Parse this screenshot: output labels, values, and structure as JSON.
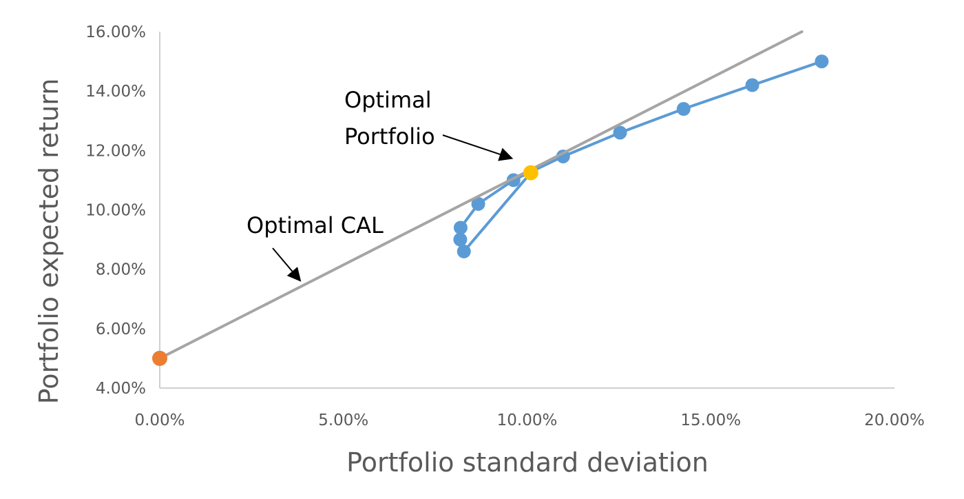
{
  "chart_data": {
    "type": "scatter",
    "xlabel": "Portfolio standard deviation",
    "ylabel": "Portfolio expected return",
    "xlim": [
      0,
      0.2
    ],
    "ylim": [
      0.04,
      0.16
    ],
    "x_ticks": [
      0,
      0.05,
      0.1,
      0.15,
      0.2
    ],
    "x_tick_labels": [
      "0.00%",
      "5.00%",
      "10.00%",
      "15.00%",
      "20.00%"
    ],
    "y_ticks": [
      0.04,
      0.06,
      0.08,
      0.1,
      0.12,
      0.14,
      0.16
    ],
    "y_tick_labels": [
      "4.00%",
      "6.00%",
      "8.00%",
      "10.00%",
      "12.00%",
      "14.00%",
      "16.00%"
    ],
    "grid": false,
    "series": [
      {
        "kind": "line-markers",
        "color": "#5b9bd5",
        "x": [
          0.0828,
          0.0818,
          0.0819,
          0.0867,
          0.0963,
          0.1098,
          0.1253,
          0.1426,
          0.1613,
          0.1802
        ],
        "y": [
          0.086,
          0.09,
          0.094,
          0.102,
          0.11,
          0.118,
          0.126,
          0.134,
          0.142,
          0.15
        ],
        "close_to": [
          0.101,
          0.1125
        ]
      },
      {
        "kind": "line",
        "color": "#a5a5a5",
        "x": [
          0,
          0.1748
        ],
        "y": [
          0.05,
          0.16
        ]
      },
      {
        "kind": "point",
        "color": "#ed7d31",
        "x": [
          0
        ],
        "y": [
          0.05
        ]
      },
      {
        "kind": "point",
        "color": "#ffc000",
        "x": [
          0.101
        ],
        "y": [
          0.1125
        ]
      }
    ],
    "annotations": [
      {
        "lines": [
          "Optimal",
          "Portfolio"
        ],
        "arrow_to": [
          0.0955,
          0.1175
        ]
      },
      {
        "lines": [
          "Optimal CAL"
        ],
        "arrow_to": [
          0.038,
          0.0765
        ]
      }
    ]
  }
}
